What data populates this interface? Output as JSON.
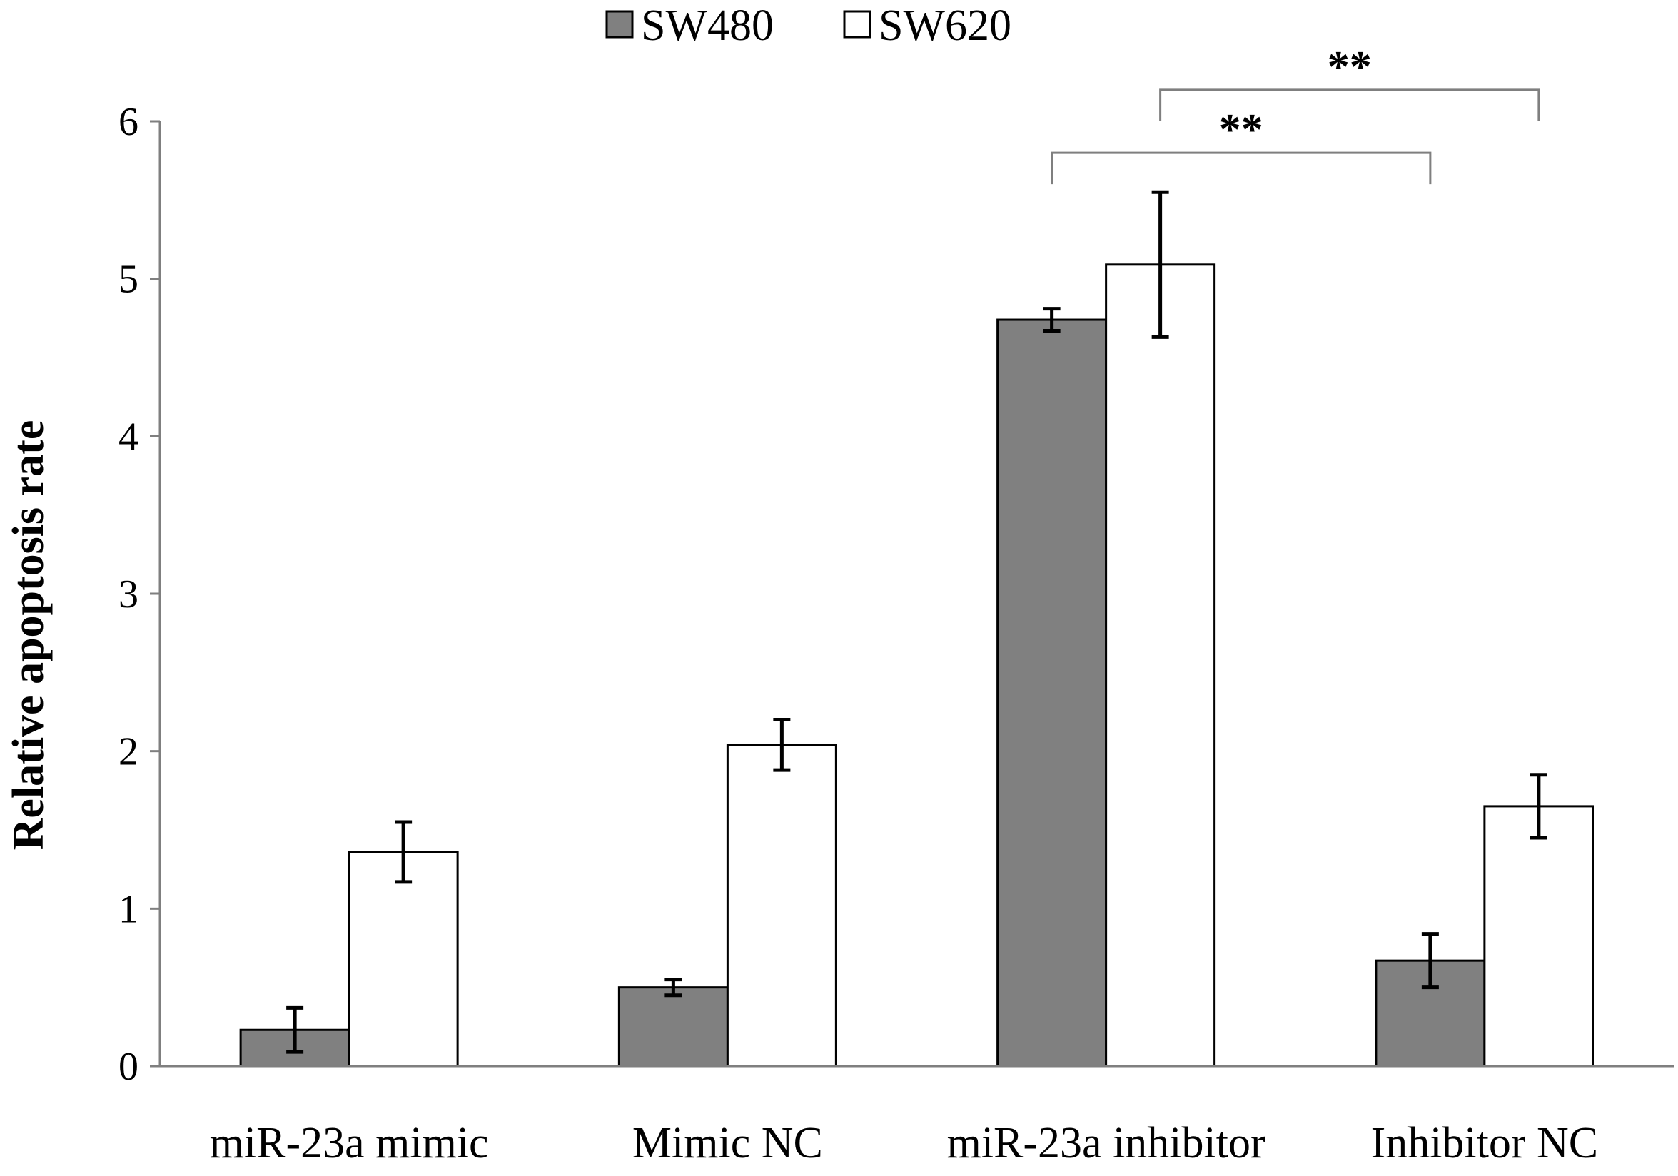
{
  "chart_data": {
    "type": "bar",
    "ylabel": "Relative apoptosis rate",
    "xlabel": "",
    "ylim": [
      0,
      6
    ],
    "yticks": [
      0,
      1,
      2,
      3,
      4,
      5,
      6
    ],
    "grid": false,
    "legend_position": "top-center",
    "categories": [
      "miR-23a mimic",
      "Mimic NC",
      "miR-23a inhibitor",
      "Inhibitor NC"
    ],
    "series": [
      {
        "name": "SW480",
        "color": "#808080",
        "values": [
          0.23,
          0.5,
          4.74,
          0.67
        ],
        "errors": [
          0.14,
          0.05,
          0.07,
          0.17
        ]
      },
      {
        "name": "SW620",
        "color": "#ffffff",
        "values": [
          1.36,
          2.04,
          5.09,
          1.65
        ],
        "errors": [
          0.19,
          0.16,
          0.46,
          0.2
        ]
      }
    ],
    "annotations": [
      {
        "label": "**",
        "from_category": 2,
        "from_series": 0,
        "to_category": 3,
        "to_series": 0,
        "level": 5.8
      },
      {
        "label": "**",
        "from_category": 2,
        "from_series": 1,
        "to_category": 3,
        "to_series": 1,
        "level": 6.2
      }
    ]
  }
}
